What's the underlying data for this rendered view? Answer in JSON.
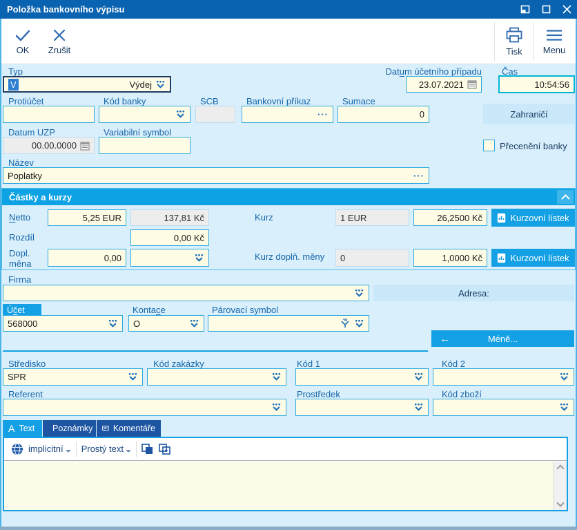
{
  "window": {
    "title": "Položka bankovního výpisu"
  },
  "toolbar": {
    "ok": "OK",
    "cancel": "Zrušit",
    "print": "Tisk",
    "menu": "Menu"
  },
  "icons": {
    "ellipsis": "···",
    "arrow_left": "←"
  },
  "form": {
    "typ": {
      "label": {
        "text": "Typ",
        "u": 0
      },
      "selected_code": "V",
      "value": "Výdej"
    },
    "datum_ucetniho_pripadu": {
      "label": {
        "text": "Datum účetního případu",
        "u": 3
      },
      "value": "23.07.2021"
    },
    "cas": {
      "label": "Čas",
      "value": "10:54:56"
    },
    "protiucet": {
      "label": "Protiúčet",
      "value": ""
    },
    "kod_banky": {
      "label": "Kód banky",
      "value": ""
    },
    "scb": {
      "label": "SCB",
      "value": ""
    },
    "bankovni_prikaz": {
      "label": "Bankovní příkaz",
      "value": ""
    },
    "sumace": {
      "label": "Sumace",
      "value": "0"
    },
    "zahranici_button": "Zahraničí",
    "datum_uzp": {
      "label": "Datum UZP",
      "value": "00.00.0000"
    },
    "variabilni_symbol": {
      "label": {
        "text": "Variabilní symbol",
        "u": 0
      },
      "value": ""
    },
    "preceneni_banky": {
      "label": "Přecenění banky",
      "checked": false
    },
    "nazev": {
      "label": "Název",
      "value": "Poplatky"
    }
  },
  "amounts_section": {
    "title": "Částky a kurzy",
    "netto": {
      "label": {
        "text": "Netto",
        "u": 0
      },
      "foreign": "5,25 EUR",
      "local": "137,81 Kč"
    },
    "kurz": {
      "label": "Kurz",
      "unit": "1 EUR",
      "rate": "26,2500 Kč"
    },
    "kurzovni_listek_button": "Kurzovní lístek",
    "rozdil": {
      "label": "Rozdíl",
      "value": "0,00 Kč"
    },
    "dopl_mena": {
      "label": "Dopl. měna",
      "amount": "0,00",
      "currency": ""
    },
    "kurz_dopl": {
      "label": "Kurz doplň. měny",
      "unit": "0",
      "rate": "1,0000 Kč"
    }
  },
  "details": {
    "firma": {
      "label": "Firma",
      "value": ""
    },
    "adresa_label": "Adresa:",
    "ucet": {
      "label": {
        "text": "Účet",
        "u": 1
      },
      "value": "568000"
    },
    "kontace": {
      "label": {
        "text": "Kontace",
        "u": 5
      },
      "value": "O"
    },
    "parovaci_symbol": {
      "label": "Párovací symbol",
      "value": ""
    },
    "mene_button": "Méně...",
    "stredisko": {
      "label": {
        "text": "Středisko",
        "u": 0
      },
      "value": "SPR"
    },
    "kod_zakazky": {
      "label": {
        "text": "Kód zakázky",
        "u": 4
      },
      "value": ""
    },
    "kod1": {
      "label": {
        "text": "Kód 1",
        "u": 4
      },
      "value": ""
    },
    "kod2": {
      "label": {
        "text": "Kód 2",
        "u": 4
      },
      "value": ""
    },
    "referent": {
      "label": {
        "text": "Referent",
        "u": 0
      },
      "value": ""
    },
    "prostredek": {
      "label": "Prostředek",
      "value": ""
    },
    "kod_zbozi": {
      "label": {
        "text": "Kód zboží",
        "u": 0
      },
      "value": ""
    }
  },
  "text_tabs": {
    "tabs": [
      {
        "label": "Text"
      },
      {
        "label": "Poznámky"
      },
      {
        "label": "Komentáře"
      }
    ],
    "active": "Text",
    "editor": {
      "language_button": "implicitní",
      "format_button": "Prostý text",
      "content": ""
    }
  },
  "colors": {
    "accent": "#14a0e4",
    "titlebar": "#0a63b0",
    "tab_inactive": "#1d55a2",
    "field_bg": "#fffce5",
    "field_border": "#2da9e1",
    "readonly_bg": "#ededed",
    "background": "#d9effc"
  }
}
